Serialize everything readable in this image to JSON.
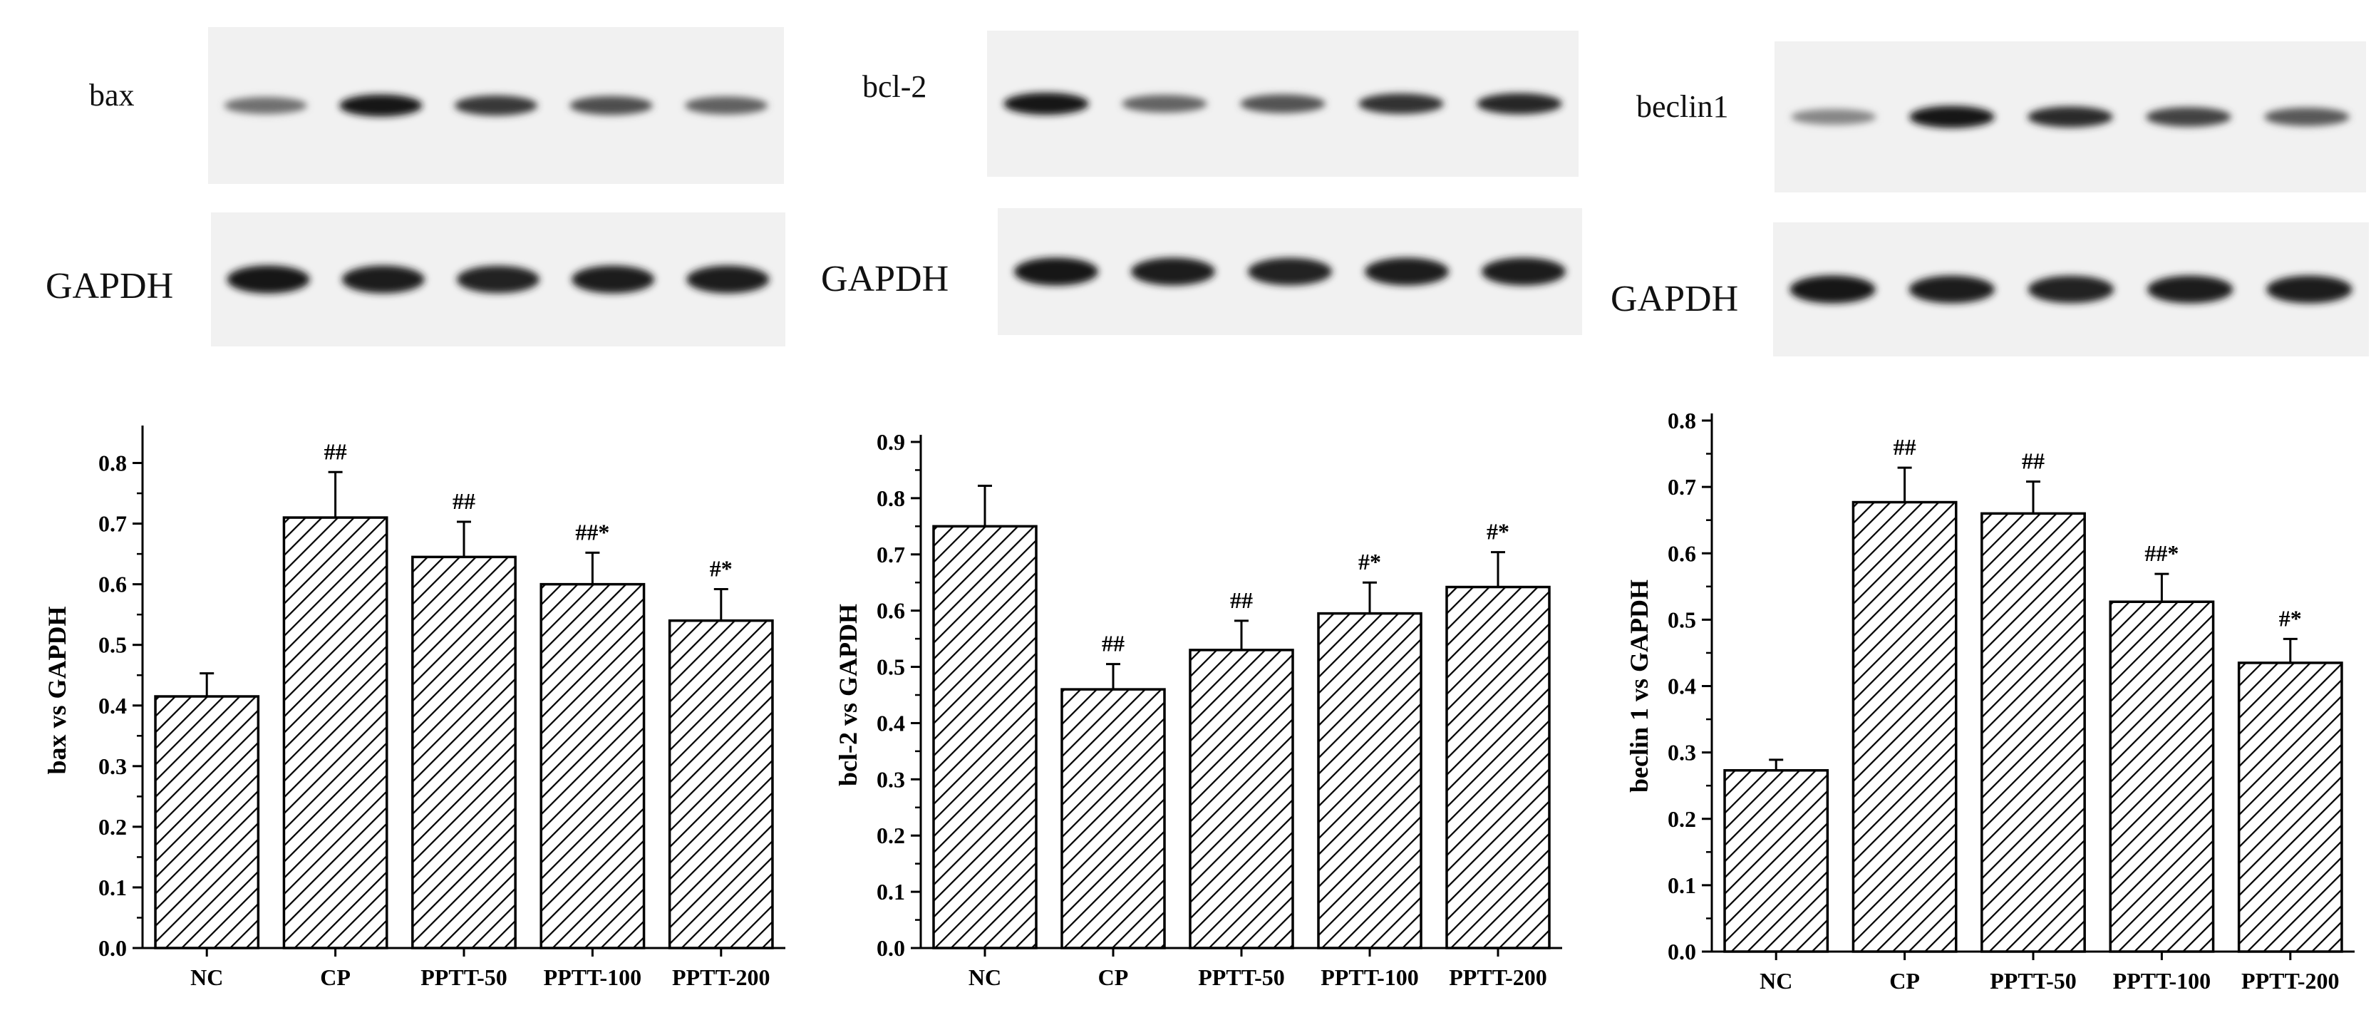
{
  "blots": [
    {
      "target_label": "bax",
      "loading_label": "GAPDH",
      "target_band_intensity": [
        0.55,
        0.95,
        0.8,
        0.7,
        0.62
      ],
      "loading_band_intensity": [
        0.95,
        0.92,
        0.9,
        0.93,
        0.92
      ]
    },
    {
      "target_label": "bcl-2",
      "loading_label": "GAPDH",
      "target_band_intensity": [
        0.95,
        0.6,
        0.68,
        0.82,
        0.88
      ],
      "loading_band_intensity": [
        0.95,
        0.92,
        0.9,
        0.92,
        0.93
      ]
    },
    {
      "target_label": "beclin1",
      "loading_label": "GAPDH",
      "target_band_intensity": [
        0.45,
        0.95,
        0.85,
        0.75,
        0.65
      ],
      "loading_band_intensity": [
        0.95,
        0.92,
        0.9,
        0.93,
        0.93
      ]
    }
  ],
  "chart_data": [
    {
      "type": "bar",
      "categories": [
        "NC",
        "CP",
        "PPTT-50",
        "PPTT-100",
        "PPTT-200"
      ],
      "values": [
        0.415,
        0.71,
        0.645,
        0.6,
        0.54
      ],
      "errors": [
        0.038,
        0.075,
        0.058,
        0.052,
        0.052
      ],
      "annotations": [
        "",
        "##",
        "##",
        "##*",
        "#*"
      ],
      "ylabel": "bax vs GAPDH",
      "xlabel": "",
      "ylim": [
        0,
        0.85
      ],
      "yticks": [
        0.0,
        0.1,
        0.2,
        0.3,
        0.4,
        0.5,
        0.6,
        0.7,
        0.8
      ],
      "hatch": "diagonal",
      "grid": false
    },
    {
      "type": "bar",
      "categories": [
        "NC",
        "CP",
        "PPTT-50",
        "PPTT-100",
        "PPTT-200"
      ],
      "values": [
        0.75,
        0.46,
        0.53,
        0.595,
        0.642
      ],
      "errors": [
        0.072,
        0.045,
        0.052,
        0.055,
        0.062
      ],
      "annotations": [
        "",
        "##",
        "##",
        "#*",
        "#*"
      ],
      "ylabel": "bcl-2 vs GAPDH",
      "xlabel": "",
      "ylim": [
        0,
        0.9
      ],
      "yticks": [
        0.0,
        0.1,
        0.2,
        0.3,
        0.4,
        0.5,
        0.6,
        0.7,
        0.8,
        0.9
      ],
      "hatch": "diagonal",
      "grid": false
    },
    {
      "type": "bar",
      "categories": [
        "NC",
        "CP",
        "PPTT-50",
        "PPTT-100",
        "PPTT-200"
      ],
      "values": [
        0.273,
        0.677,
        0.66,
        0.527,
        0.435
      ],
      "errors": [
        0.016,
        0.052,
        0.048,
        0.042,
        0.036
      ],
      "annotations": [
        "",
        "##",
        "##",
        "##*",
        "#*"
      ],
      "ylabel": "beclin 1 vs GAPDH",
      "xlabel": "",
      "ylim": [
        0,
        0.8
      ],
      "yticks": [
        0.0,
        0.1,
        0.2,
        0.3,
        0.4,
        0.5,
        0.6,
        0.7,
        0.8
      ],
      "hatch": "diagonal",
      "grid": false
    }
  ]
}
